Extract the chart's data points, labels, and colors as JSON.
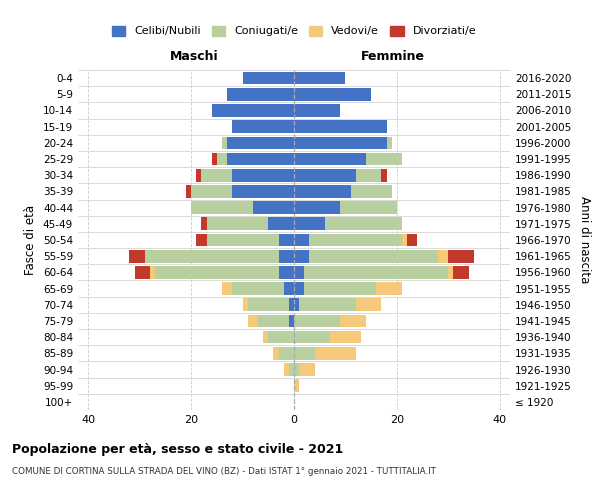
{
  "age_groups": [
    "100+",
    "95-99",
    "90-94",
    "85-89",
    "80-84",
    "75-79",
    "70-74",
    "65-69",
    "60-64",
    "55-59",
    "50-54",
    "45-49",
    "40-44",
    "35-39",
    "30-34",
    "25-29",
    "20-24",
    "15-19",
    "10-14",
    "5-9",
    "0-4"
  ],
  "birth_years": [
    "≤ 1920",
    "1921-1925",
    "1926-1930",
    "1931-1935",
    "1936-1940",
    "1941-1945",
    "1946-1950",
    "1951-1955",
    "1956-1960",
    "1961-1965",
    "1966-1970",
    "1971-1975",
    "1976-1980",
    "1981-1985",
    "1986-1990",
    "1991-1995",
    "1996-2000",
    "2001-2005",
    "2006-2010",
    "2011-2015",
    "2016-2020"
  ],
  "colors": {
    "celibi": "#4472c4",
    "coniugati": "#b8cfa0",
    "vedovi": "#f5c97a",
    "divorziati": "#c0392b"
  },
  "maschi": {
    "celibi": [
      0,
      0,
      0,
      0,
      0,
      1,
      1,
      2,
      3,
      3,
      3,
      5,
      8,
      12,
      12,
      13,
      13,
      12,
      16,
      13,
      10
    ],
    "coniugati": [
      0,
      0,
      1,
      3,
      5,
      6,
      8,
      10,
      24,
      26,
      14,
      12,
      12,
      8,
      6,
      2,
      1,
      0,
      0,
      0,
      0
    ],
    "vedovi": [
      0,
      0,
      1,
      1,
      1,
      2,
      1,
      2,
      1,
      0,
      0,
      0,
      0,
      0,
      0,
      0,
      0,
      0,
      0,
      0,
      0
    ],
    "divorziati": [
      0,
      0,
      0,
      0,
      0,
      0,
      0,
      0,
      3,
      3,
      2,
      1,
      0,
      1,
      1,
      1,
      0,
      0,
      0,
      0,
      0
    ]
  },
  "femmine": {
    "celibi": [
      0,
      0,
      0,
      0,
      0,
      0,
      1,
      2,
      2,
      3,
      3,
      6,
      9,
      11,
      12,
      14,
      18,
      18,
      9,
      15,
      10
    ],
    "coniugati": [
      0,
      0,
      1,
      4,
      7,
      9,
      11,
      14,
      28,
      25,
      18,
      15,
      11,
      8,
      5,
      7,
      1,
      0,
      0,
      0,
      0
    ],
    "vedovi": [
      0,
      1,
      3,
      8,
      6,
      5,
      5,
      5,
      1,
      2,
      1,
      0,
      0,
      0,
      0,
      0,
      0,
      0,
      0,
      0,
      0
    ],
    "divorziati": [
      0,
      0,
      0,
      0,
      0,
      0,
      0,
      0,
      3,
      5,
      2,
      0,
      0,
      0,
      1,
      0,
      0,
      0,
      0,
      0,
      0
    ]
  },
  "xlim": [
    -42,
    42
  ],
  "xticks": [
    -40,
    -20,
    0,
    20,
    40
  ],
  "xticklabels": [
    "40",
    "20",
    "0",
    "20",
    "40"
  ],
  "title": "Popolazione per età, sesso e stato civile - 2021",
  "subtitle": "COMUNE DI CORTINA SULLA STRADA DEL VINO (BZ) - Dati ISTAT 1° gennaio 2021 - TUTTITALIA.IT",
  "ylabel_left": "Fasce di età",
  "ylabel_right": "Anni di nascita",
  "maschi_label": "Maschi",
  "femmine_label": "Femmine",
  "legend_labels": [
    "Celibi/Nubili",
    "Coniugati/e",
    "Vedovi/e",
    "Divorziati/e"
  ],
  "bg_color": "#ffffff",
  "grid_color": "#cccccc"
}
